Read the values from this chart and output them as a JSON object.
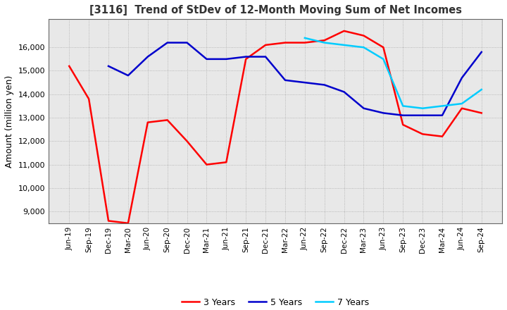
{
  "title": "[3116]  Trend of StDev of 12-Month Moving Sum of Net Incomes",
  "ylabel": "Amount (million yen)",
  "ylim": [
    8500,
    17200
  ],
  "yticks": [
    9000,
    10000,
    11000,
    12000,
    13000,
    14000,
    15000,
    16000
  ],
  "line_colors": {
    "3 Years": "#ff0000",
    "5 Years": "#0000cc",
    "7 Years": "#00ccff",
    "10 Years": "#006600"
  },
  "x_labels": [
    "Jun-19",
    "Sep-19",
    "Dec-19",
    "Mar-20",
    "Jun-20",
    "Sep-20",
    "Dec-20",
    "Mar-21",
    "Jun-21",
    "Sep-21",
    "Dec-21",
    "Mar-22",
    "Jun-22",
    "Sep-22",
    "Dec-22",
    "Mar-23",
    "Jun-23",
    "Sep-23",
    "Dec-23",
    "Mar-24",
    "Jun-24",
    "Sep-24"
  ],
  "series": {
    "3 Years": [
      15200,
      13800,
      8600,
      8500,
      12800,
      12900,
      12000,
      11000,
      11100,
      15500,
      16100,
      16200,
      16200,
      16300,
      16700,
      16500,
      16000,
      12700,
      12300,
      12200,
      13400,
      13200
    ],
    "5 Years": [
      null,
      null,
      15200,
      14800,
      15600,
      16200,
      16200,
      15500,
      15500,
      15600,
      15600,
      14600,
      14500,
      14400,
      14100,
      13400,
      13200,
      13100,
      13100,
      13100,
      14700,
      15800
    ],
    "7 Years": [
      null,
      null,
      null,
      null,
      null,
      null,
      null,
      null,
      null,
      null,
      null,
      null,
      16400,
      16200,
      16100,
      16000,
      15500,
      13500,
      13400,
      13500,
      13600,
      14200
    ],
    "10 Years": [
      null,
      null,
      null,
      null,
      null,
      null,
      null,
      null,
      null,
      null,
      null,
      null,
      null,
      null,
      null,
      null,
      null,
      null,
      null,
      null,
      null,
      null
    ]
  },
  "background_color": "#ffffff",
  "grid_color": "#aaaaaa",
  "line_width": 1.8
}
